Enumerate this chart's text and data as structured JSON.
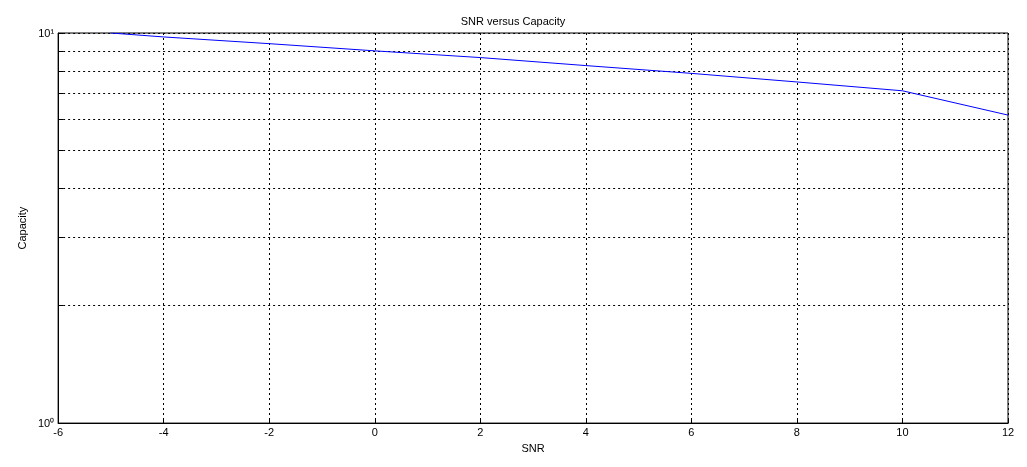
{
  "chart_data": {
    "type": "line",
    "title": "SNR versus Capacity",
    "xlabel": "SNR",
    "ylabel": "Capacity",
    "x": [
      -5,
      -4,
      -2,
      0,
      2,
      4,
      6,
      8,
      10,
      12
    ],
    "series": [
      {
        "color": "#0000ff",
        "values": [
          10,
          9.77,
          9.39,
          9.0,
          8.65,
          8.25,
          7.88,
          7.49,
          7.11,
          6.16
        ]
      }
    ],
    "xlim": [
      -6,
      12
    ],
    "xticks": [
      -6,
      -4,
      -2,
      0,
      2,
      4,
      6,
      8,
      10,
      12
    ],
    "ylim": [
      1,
      10
    ],
    "yticks": [
      {
        "value": 1,
        "label": "10⁰"
      },
      {
        "value": 2,
        "label": null
      },
      {
        "value": 3,
        "label": null
      },
      {
        "value": 4,
        "label": null
      },
      {
        "value": 5,
        "label": null
      },
      {
        "value": 6,
        "label": null
      },
      {
        "value": 7,
        "label": null
      },
      {
        "value": 8,
        "label": null
      },
      {
        "value": 9,
        "label": null
      },
      {
        "value": 10,
        "label": "10¹"
      }
    ],
    "log": true,
    "grid": true,
    "marker": "none",
    "line_style": "solid"
  }
}
